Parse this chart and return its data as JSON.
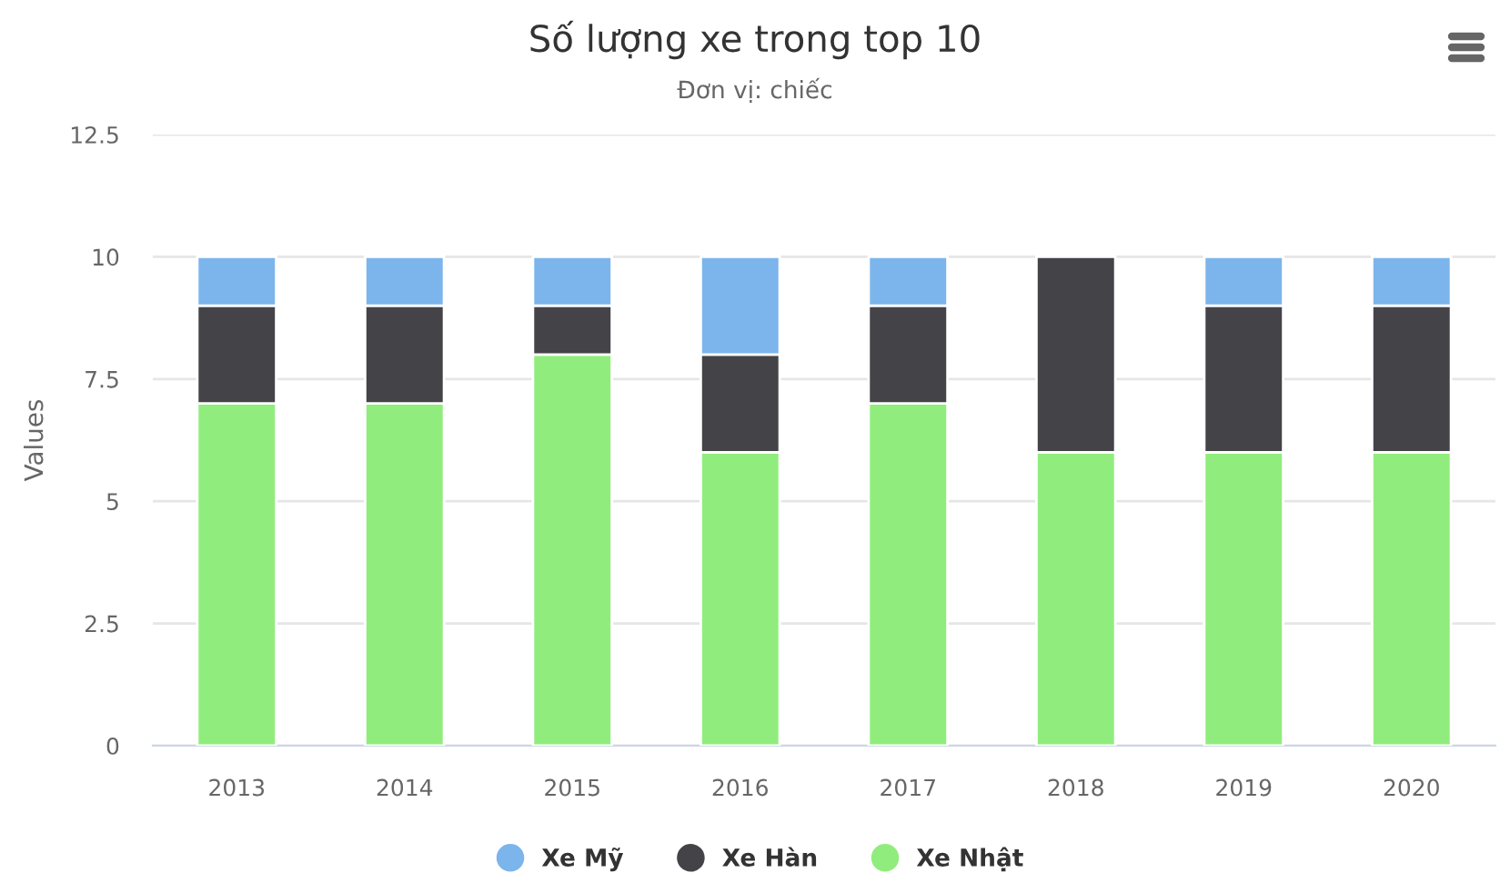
{
  "chart_data": {
    "type": "bar",
    "title": "Số lượng xe trong top 10",
    "subtitle": "Đơn vị: chiếc",
    "ylabel": "Values",
    "categories": [
      "2013",
      "2014",
      "2015",
      "2016",
      "2017",
      "2018",
      "2019",
      "2020"
    ],
    "series": [
      {
        "name": "Xe Nhật",
        "color": "#90ed7d",
        "values": [
          7,
          7,
          8,
          6,
          7,
          6,
          6,
          6
        ]
      },
      {
        "name": "Xe Hàn",
        "color": "#434348",
        "values": [
          2,
          2,
          1,
          2,
          2,
          4,
          3,
          3
        ]
      },
      {
        "name": "Xe Mỹ",
        "color": "#7cb5ec",
        "values": [
          1,
          1,
          1,
          2,
          1,
          0,
          1,
          1
        ]
      }
    ],
    "stacked": true,
    "ylim": [
      0,
      12.5
    ],
    "yticks": [
      0,
      2.5,
      5,
      7.5,
      10,
      12.5
    ],
    "grid": "y",
    "legend": "bottom"
  }
}
